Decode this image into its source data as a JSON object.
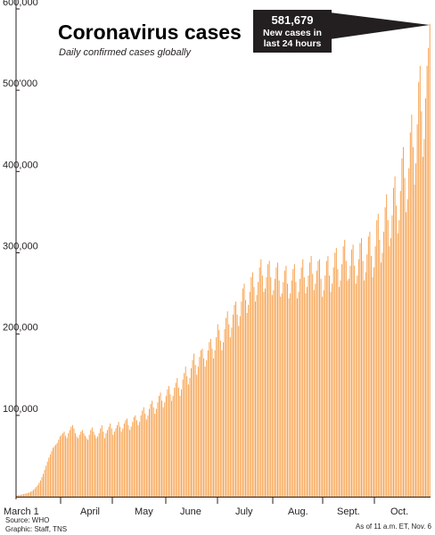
{
  "chart_data": {
    "type": "bar",
    "title": "Coronavirus cases",
    "subtitle": "Daily confirmed cases globally",
    "xlabel": "",
    "ylabel": "",
    "ylim": [
      0,
      600000
    ],
    "y_ticks": [
      100000,
      200000,
      300000,
      400000,
      500000,
      600000
    ],
    "y_tick_labels": [
      "100,000",
      "200,000",
      "300,000",
      "400,000",
      "500’000",
      "600,000"
    ],
    "x_tick_labels": [
      "March 1",
      "April",
      "May",
      "June",
      "July",
      "Aug.",
      "Sept.",
      "Oct."
    ],
    "grid": false,
    "bar_color": "#f7a04b",
    "annotation": {
      "value_label": "581,679",
      "line1": "New cases in",
      "line2": "last 24 hours",
      "value": 581679
    },
    "source": "Source: WHO",
    "graphic": "Graphic: Staff, TNS",
    "as_of": "As of 11 a.m. ET, Nov. 6",
    "series": [
      {
        "values": [
          1500,
          1800,
          2100,
          2400,
          2800,
          3200,
          3600,
          4000,
          4500,
          5200,
          6000,
          7000,
          8500,
          10000,
          12000,
          14000,
          17000,
          20000,
          24000,
          28000,
          33000,
          38000,
          43000,
          48000,
          52000,
          56000,
          60000,
          62000,
          64000,
          66000,
          70000,
          74000,
          76000,
          78000,
          80000,
          75000,
          72000,
          78000,
          82000,
          86000,
          88000,
          84000,
          78000,
          74000,
          72000,
          76000,
          80000,
          82000,
          78000,
          75000,
          72000,
          70000,
          76000,
          82000,
          85000,
          80000,
          76000,
          72000,
          74000,
          78000,
          84000,
          88000,
          80000,
          72000,
          78000,
          82000,
          86000,
          90000,
          84000,
          76000,
          80000,
          84000,
          88000,
          92000,
          86000,
          80000,
          84000,
          90000,
          94000,
          96000,
          88000,
          82000,
          86000,
          92000,
          98000,
          100000,
          94000,
          88000,
          92000,
          100000,
          106000,
          110000,
          102000,
          95000,
          100000,
          108000,
          114000,
          118000,
          110000,
          102000,
          108000,
          116000,
          124000,
          128000,
          118000,
          110000,
          116000,
          124000,
          132000,
          136000,
          126000,
          118000,
          124000,
          134000,
          140000,
          146000,
          134000,
          124000,
          132000,
          144000,
          152000,
          160000,
          148000,
          138000,
          146000,
          158000,
          168000,
          176000,
          162000,
          150000,
          160000,
          172000,
          180000,
          182000,
          170000,
          160000,
          168000,
          180000,
          190000,
          194000,
          182000,
          170000,
          180000,
          196000,
          212000,
          205000,
          192000,
          180000,
          190000,
          206000,
          220000,
          228000,
          212000,
          196000,
          208000,
          224000,
          236000,
          240000,
          224000,
          210000,
          222000,
          240000,
          256000,
          262000,
          242000,
          226000,
          236000,
          252000,
          270000,
          276000,
          258000,
          240000,
          248000,
          264000,
          282000,
          292000,
          272000,
          252000,
          256000,
          270000,
          286000,
          290000,
          270000,
          248000,
          254000,
          268000,
          282000,
          288000,
          266000,
          246000,
          250000,
          264000,
          278000,
          284000,
          262000,
          244000,
          250000,
          266000,
          280000,
          286000,
          264000,
          244000,
          252000,
          268000,
          282000,
          292000,
          270000,
          250000,
          258000,
          272000,
          288000,
          296000,
          274000,
          254000,
          262000,
          278000,
          290000,
          292000,
          268000,
          246000,
          254000,
          272000,
          290000,
          296000,
          272000,
          252000,
          262000,
          282000,
          300000,
          306000,
          280000,
          258000,
          266000,
          286000,
          308000,
          316000,
          290000,
          266000,
          268000,
          284000,
          304000,
          310000,
          284000,
          262000,
          272000,
          292000,
          312000,
          318000,
          290000,
          266000,
          276000,
          298000,
          320000,
          326000,
          296000,
          270000,
          282000,
          308000,
          340000,
          348000,
          316000,
          288000,
          300000,
          326000,
          356000,
          372000,
          340000,
          308000,
          318000,
          346000,
          380000,
          394000,
          358000,
          324000,
          340000,
          376000,
          416000,
          430000,
          392000,
          350000,
          366000,
          404000,
          448000,
          470000,
          430000,
          384000,
          410000,
          458000,
          510000,
          530000,
          474000,
          418000,
          440000,
          490000,
          530000,
          552000,
          581679
        ]
      }
    ]
  }
}
